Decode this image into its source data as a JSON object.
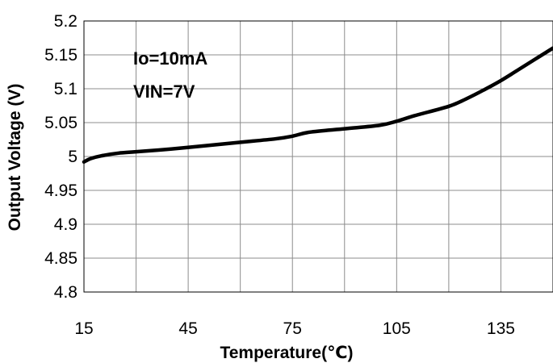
{
  "chart_data": {
    "type": "line",
    "title": "",
    "xlabel": "Temperature(℃)",
    "ylabel": "Output Voltage (V)",
    "xlim": [
      15,
      150
    ],
    "ylim": [
      4.8,
      5.2
    ],
    "x_ticks": [
      15,
      45,
      75,
      105,
      135
    ],
    "y_ticks": [
      5.2,
      5.15,
      5.1,
      5.05,
      5,
      4.95,
      4.9,
      4.85,
      4.8
    ],
    "x_tick_labels": [
      "15",
      "45",
      "75",
      "105",
      "135"
    ],
    "y_tick_labels": [
      "5.2",
      "5.15",
      "5.1",
      "5.05",
      "5",
      "4.95",
      "4.9",
      "4.85",
      "4.8"
    ],
    "grid": true,
    "annotations": [
      "Io=10mA",
      "VIN=7V"
    ],
    "series": [
      {
        "x": [
          15,
          17,
          20,
          25,
          30,
          40,
          50,
          60,
          70,
          75,
          80,
          90,
          100,
          105,
          110,
          120,
          125,
          130,
          135,
          140,
          145,
          150
        ],
        "y": [
          4.992,
          4.997,
          5.001,
          5.005,
          5.007,
          5.011,
          5.016,
          5.021,
          5.026,
          5.03,
          5.036,
          5.041,
          5.046,
          5.052,
          5.06,
          5.074,
          5.085,
          5.098,
          5.112,
          5.128,
          5.144,
          5.16
        ]
      }
    ],
    "line_color": "#000000"
  }
}
